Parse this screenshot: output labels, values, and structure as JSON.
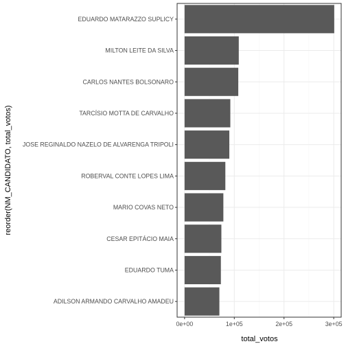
{
  "chart_data": {
    "type": "bar",
    "orientation": "horizontal",
    "xlabel": "total_votos",
    "ylabel": "reorder(NM_CANDIDATO, total_votos)",
    "xlim": [
      -15000,
      315000
    ],
    "x_ticks": [
      0,
      100000,
      200000,
      300000
    ],
    "x_tick_labels": [
      "0e+00",
      "1e+05",
      "2e+05",
      "3e+05"
    ],
    "grid": true,
    "categories": [
      "EDUARDO MATARAZZO SUPLICY",
      "MILTON LEITE DA SILVA",
      "CARLOS NANTES BOLSONARO",
      "TARCÍSIO MOTTA DE CARVALHO",
      "JOSE REGINALDO NAZELO DE ALVARENGA TRIPOLI",
      "ROBERVAL CONTE LOPES LIMA",
      "MARIO COVAS NETO",
      "CESAR EPITÁCIO MAIA",
      "EDUARDO TUMA",
      "ADILSON ARMANDO CARVALHO AMADEU"
    ],
    "values": [
      301000,
      109000,
      108000,
      92000,
      90000,
      82000,
      78000,
      74000,
      73000,
      70000
    ],
    "colors": {
      "bar": "#595959",
      "panel_border": "#333333",
      "grid_major": "#ebebeb",
      "grid_minor": "#f5f5f5",
      "background": "#ffffff"
    }
  }
}
